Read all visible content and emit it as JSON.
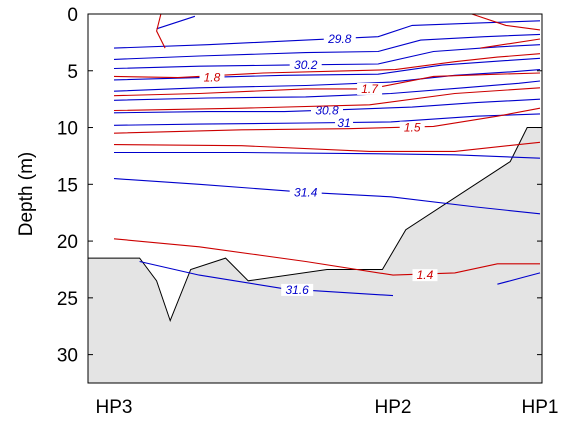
{
  "chart_data": {
    "type": "contour",
    "title": "",
    "xlabel": "",
    "ylabel": "Depth (m)",
    "xlim": [
      0,
      1
    ],
    "ylim": [
      0,
      32.5
    ],
    "y_inverted": true,
    "yticks": [
      0,
      5,
      10,
      15,
      20,
      25,
      30
    ],
    "x_stations": [
      {
        "label": "HP3",
        "x": 0.0
      },
      {
        "label": "HP2",
        "x": 0.655
      },
      {
        "label": "HP1",
        "x": 1.0
      }
    ],
    "bathymetry": {
      "fill": "#e4e4e4",
      "points": [
        [
          0.0,
          21.5
        ],
        [
          0.06,
          21.5
        ],
        [
          0.1,
          23.5
        ],
        [
          0.132,
          27.0
        ],
        [
          0.18,
          22.5
        ],
        [
          0.262,
          21.5
        ],
        [
          0.315,
          23.5
        ],
        [
          0.5,
          22.5
        ],
        [
          0.63,
          22.5
        ],
        [
          0.685,
          19.0
        ],
        [
          0.93,
          13.0
        ],
        [
          0.97,
          10.0
        ],
        [
          1.0,
          10.0
        ]
      ]
    },
    "series": [
      {
        "color": "#0000cc",
        "points": [
          [
            0.1,
            1.3
          ],
          [
            0.19,
            0.2
          ]
        ]
      },
      {
        "color": "#0000cc",
        "points": [
          [
            0.0,
            3.0
          ],
          [
            0.22,
            2.7
          ],
          [
            0.45,
            2.3
          ],
          [
            0.62,
            2.0
          ],
          [
            0.7,
            1.0
          ],
          [
            0.85,
            0.8
          ],
          [
            1.0,
            0.6
          ]
        ],
        "label": "29.8",
        "label_at": [
          0.53,
          2.2
        ]
      },
      {
        "color": "#0000cc",
        "points": [
          [
            0.0,
            4.0
          ],
          [
            0.2,
            3.7
          ],
          [
            0.45,
            3.4
          ],
          [
            0.62,
            3.3
          ],
          [
            0.72,
            2.3
          ],
          [
            0.87,
            2.0
          ],
          [
            1.0,
            1.8
          ]
        ]
      },
      {
        "color": "#0000cc",
        "points": [
          [
            0.0,
            4.8
          ],
          [
            0.2,
            4.6
          ],
          [
            0.4,
            4.5
          ],
          [
            0.62,
            4.4
          ],
          [
            0.75,
            3.3
          ],
          [
            0.9,
            2.9
          ],
          [
            1.0,
            2.7
          ]
        ],
        "label": "30.2",
        "label_at": [
          0.45,
          4.5
        ]
      },
      {
        "color": "#0000cc",
        "points": [
          [
            0.0,
            5.8
          ],
          [
            0.2,
            5.6
          ],
          [
            0.4,
            5.4
          ],
          [
            0.62,
            5.3
          ],
          [
            0.77,
            4.5
          ],
          [
            0.92,
            4.1
          ],
          [
            1.0,
            3.9
          ]
        ]
      },
      {
        "color": "#0000cc",
        "points": [
          [
            0.0,
            6.8
          ],
          [
            0.2,
            6.5
          ],
          [
            0.45,
            6.3
          ],
          [
            0.65,
            6.0
          ],
          [
            0.8,
            5.4
          ],
          [
            0.93,
            5.1
          ],
          [
            1.0,
            4.9
          ]
        ]
      },
      {
        "color": "#0000cc",
        "points": [
          [
            0.0,
            7.6
          ],
          [
            0.22,
            7.4
          ],
          [
            0.45,
            7.3
          ],
          [
            0.65,
            7.0
          ],
          [
            0.82,
            6.5
          ],
          [
            0.95,
            6.1
          ],
          [
            1.0,
            5.9
          ]
        ]
      },
      {
        "color": "#0000cc",
        "points": [
          [
            0.0,
            8.7
          ],
          [
            0.22,
            8.6
          ],
          [
            0.4,
            8.6
          ],
          [
            0.55,
            8.4
          ],
          [
            0.7,
            8.2
          ],
          [
            0.85,
            7.8
          ],
          [
            1.0,
            7.5
          ]
        ],
        "label": "30.8",
        "label_at": [
          0.5,
          8.5
        ]
      },
      {
        "color": "#0000cc",
        "points": [
          [
            0.0,
            9.8
          ],
          [
            0.2,
            9.7
          ],
          [
            0.45,
            9.6
          ],
          [
            0.65,
            9.5
          ],
          [
            0.85,
            9.0
          ],
          [
            1.0,
            8.8
          ]
        ],
        "label": "31",
        "label_at": [
          0.54,
          9.6
        ]
      },
      {
        "color": "#0000cc",
        "points": [
          [
            0.0,
            12.2
          ],
          [
            0.3,
            12.2
          ],
          [
            0.6,
            12.3
          ],
          [
            0.8,
            12.4
          ],
          [
            1.0,
            12.7
          ]
        ]
      },
      {
        "color": "#0000cc",
        "points": [
          [
            0.0,
            14.5
          ],
          [
            0.2,
            15.0
          ],
          [
            0.45,
            15.7
          ],
          [
            0.65,
            16.1
          ],
          [
            0.85,
            17.0
          ],
          [
            1.0,
            17.6
          ]
        ],
        "label": "31.4",
        "label_at": [
          0.45,
          15.7
        ]
      },
      {
        "color": "#0000cc",
        "points": [
          [
            0.06,
            21.8
          ],
          [
            0.2,
            23.0
          ],
          [
            0.4,
            24.2
          ],
          [
            0.655,
            24.8
          ]
        ],
        "label": "31.6",
        "label_at": [
          0.43,
          24.3
        ]
      },
      {
        "color": "#0000cc",
        "points": [
          [
            0.9,
            23.8
          ],
          [
            0.96,
            23.2
          ],
          [
            1.0,
            22.8
          ]
        ]
      },
      {
        "color": "#cc0000",
        "points": [
          [
            0.11,
            0.0
          ],
          [
            0.1,
            1.5
          ],
          [
            0.12,
            3.0
          ]
        ]
      },
      {
        "color": "#cc0000",
        "points": [
          [
            0.84,
            0.0
          ],
          [
            0.92,
            1.0
          ],
          [
            1.0,
            1.4
          ]
        ]
      },
      {
        "color": "#cc0000",
        "points": [
          [
            0.86,
            3.0
          ],
          [
            1.0,
            2.2
          ]
        ]
      },
      {
        "color": "#cc0000",
        "points": [
          [
            0.0,
            5.5
          ],
          [
            0.15,
            5.6
          ],
          [
            0.35,
            5.2
          ],
          [
            0.55,
            5.0
          ],
          [
            0.66,
            4.9
          ],
          [
            0.8,
            4.2
          ],
          [
            0.9,
            3.8
          ],
          [
            1.0,
            3.5
          ]
        ],
        "label": "1.8",
        "label_at": [
          0.23,
          5.6
        ]
      },
      {
        "color": "#cc0000",
        "points": [
          [
            0.0,
            7.2
          ],
          [
            0.2,
            7.0
          ],
          [
            0.45,
            6.6
          ],
          [
            0.6,
            6.6
          ],
          [
            0.75,
            5.5
          ],
          [
            0.9,
            5.3
          ],
          [
            1.0,
            5.2
          ]
        ],
        "label": "1.7",
        "label_at": [
          0.6,
          6.6
        ]
      },
      {
        "color": "#cc0000",
        "points": [
          [
            0.0,
            8.5
          ],
          [
            0.3,
            8.3
          ],
          [
            0.6,
            8.0
          ],
          [
            0.8,
            7.0
          ],
          [
            1.0,
            6.5
          ]
        ]
      },
      {
        "color": "#cc0000",
        "points": [
          [
            0.0,
            10.5
          ],
          [
            0.3,
            10.2
          ],
          [
            0.55,
            10.1
          ],
          [
            0.75,
            9.9
          ],
          [
            0.9,
            9.0
          ],
          [
            1.0,
            8.3
          ]
        ],
        "label": "1.5",
        "label_at": [
          0.7,
          10.0
        ]
      },
      {
        "color": "#cc0000",
        "points": [
          [
            0.0,
            11.5
          ],
          [
            0.3,
            11.6
          ],
          [
            0.6,
            12.1
          ],
          [
            0.8,
            12.1
          ],
          [
            1.0,
            11.3
          ]
        ]
      },
      {
        "color": "#cc0000",
        "points": [
          [
            0.0,
            19.8
          ],
          [
            0.2,
            20.5
          ],
          [
            0.45,
            21.8
          ],
          [
            0.655,
            23.0
          ],
          [
            0.8,
            22.8
          ],
          [
            0.9,
            22.0
          ],
          [
            1.0,
            22.0
          ]
        ],
        "label": "1.4",
        "label_at": [
          0.73,
          23.0
        ]
      }
    ]
  }
}
